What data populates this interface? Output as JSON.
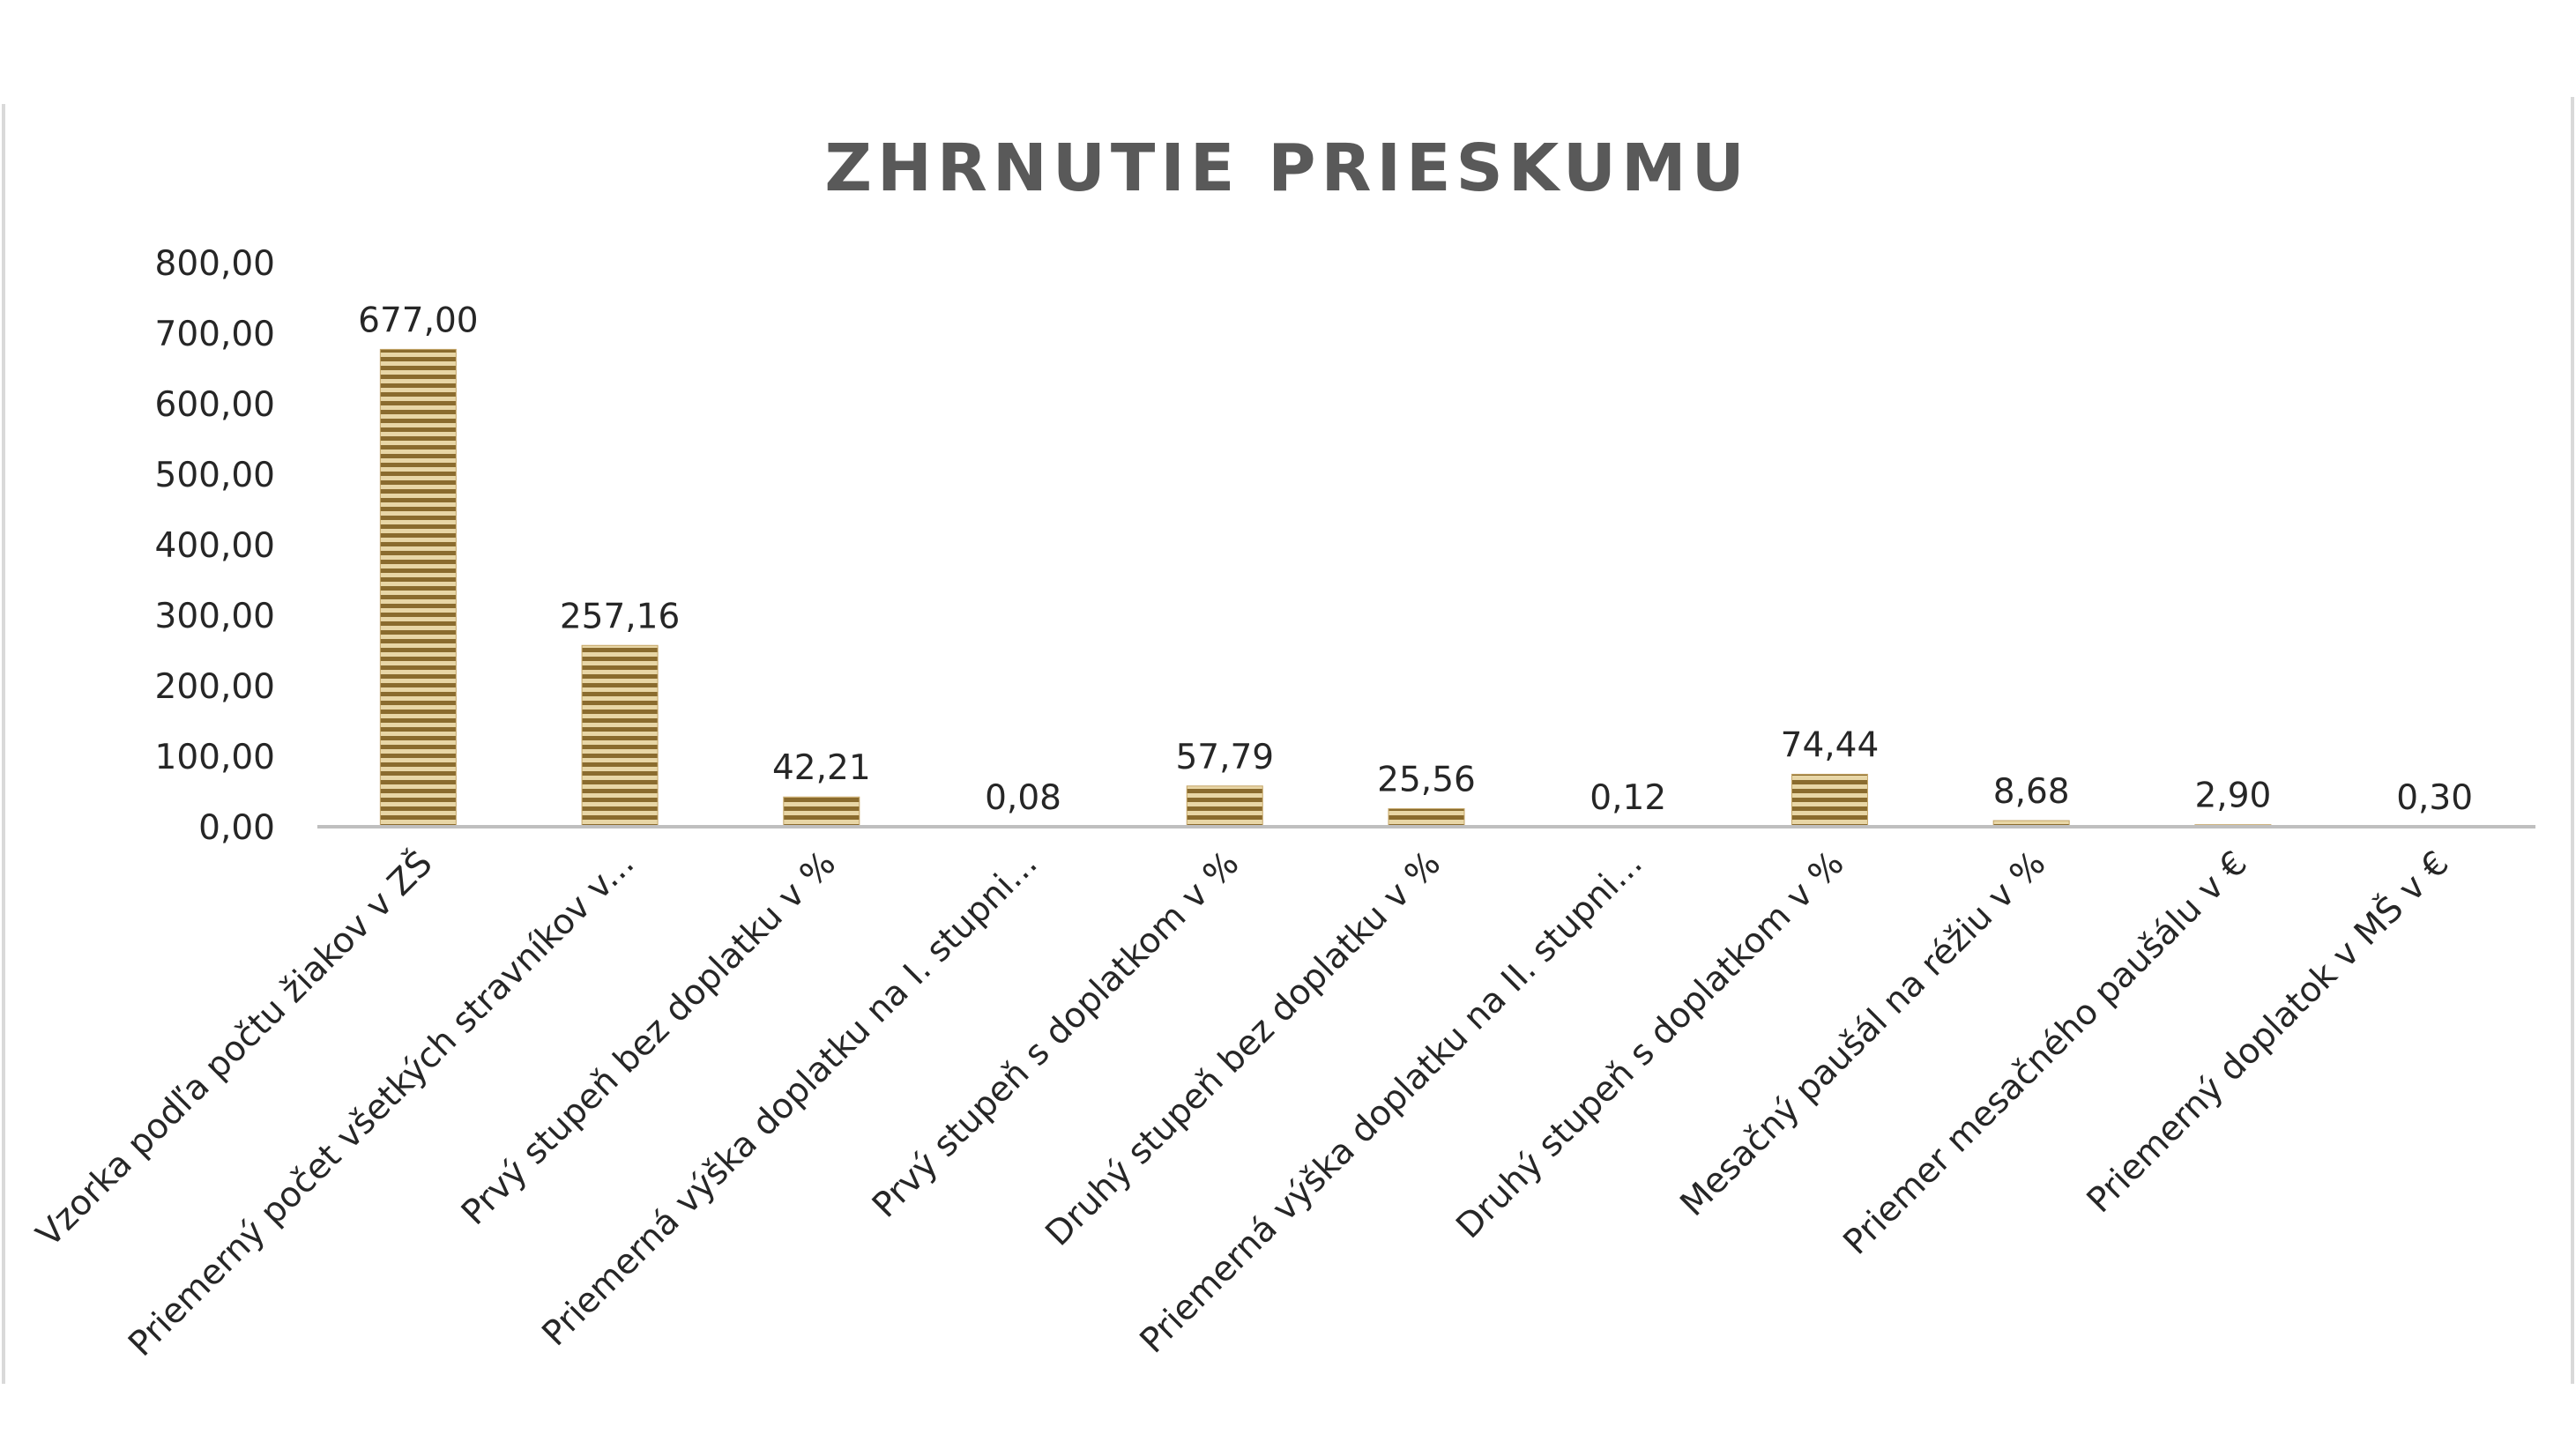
{
  "chart_data": {
    "type": "bar",
    "title": "ZHRNUTIE PRIESKUMU",
    "xlabel": "",
    "ylabel": "",
    "ylim": [
      0,
      800
    ],
    "y_ticks": [
      "0,00",
      "100,00",
      "200,00",
      "300,00",
      "400,00",
      "500,00",
      "600,00",
      "700,00",
      "800,00"
    ],
    "grid": false,
    "legend": "none",
    "categories": [
      "Vzorka podľa počtu žiakov v ZŠ",
      "Priemerný počet všetkých stravníkov v...",
      "Prvý stupeň bez doplatku v %",
      "Priemerná výška doplatku na I. stupni...",
      "Prvý stupeň s doplatkom v %",
      "Druhý stupeň bez doplatku v %",
      "Priemerná výška doplatku na II. stupni...",
      "Druhý stupeň s doplatkom v %",
      "Mesačný paušál na réžiu v %",
      "Priemer mesačného paušálu v €",
      "Priemerný doplatok v MŠ v €"
    ],
    "values": [
      677.0,
      257.16,
      42.21,
      0.08,
      57.79,
      25.56,
      0.12,
      74.44,
      8.68,
      2.9,
      0.3
    ],
    "data_labels": [
      "677,00",
      "257,16",
      "42,21",
      "0,08",
      "57,79",
      "25,56",
      "0,12",
      "74,44",
      "8,68",
      "2,90",
      "0,30"
    ],
    "colors": {
      "bar_light": "#e8d6a6",
      "bar_dark": "#8a6b2e",
      "bar_mid": "#c4a567",
      "axis": "#bfbfbf",
      "title": "#595959",
      "text": "#262626",
      "frame": "#d9d9d9"
    }
  }
}
